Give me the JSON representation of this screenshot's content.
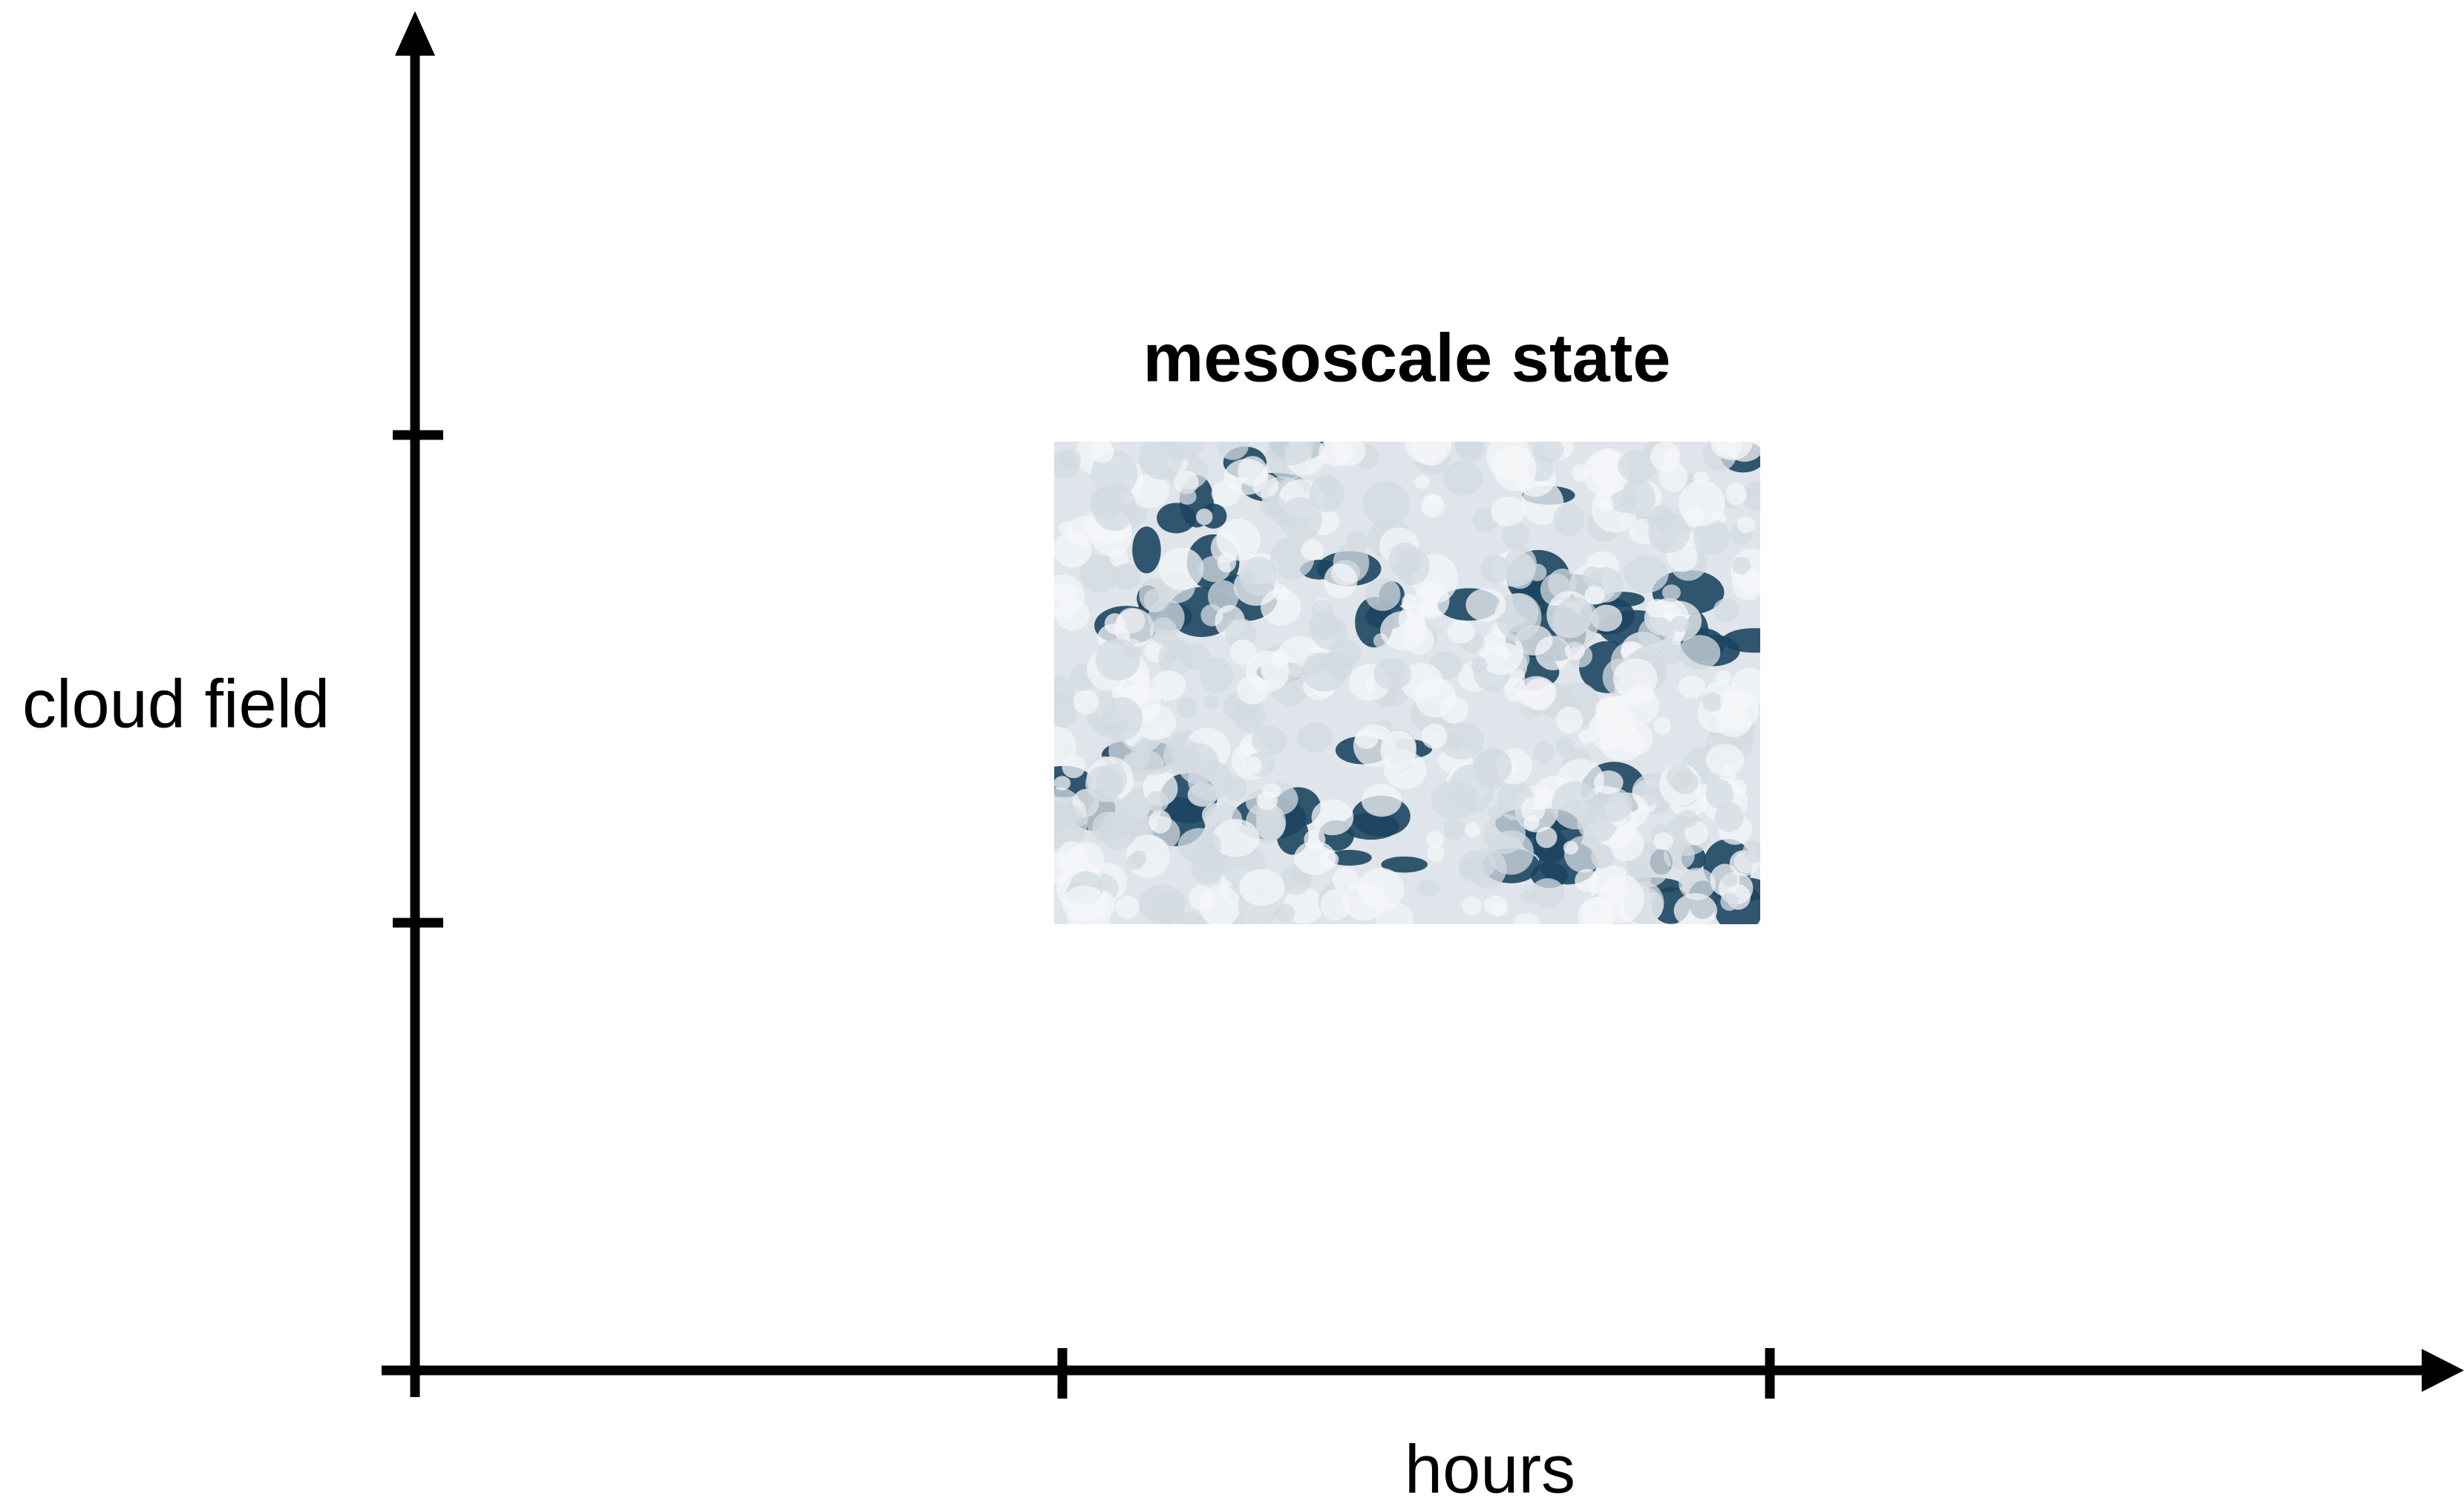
{
  "title": "mesoscale state",
  "y_axis_label": "cloud field",
  "x_axis_label": "hours"
}
